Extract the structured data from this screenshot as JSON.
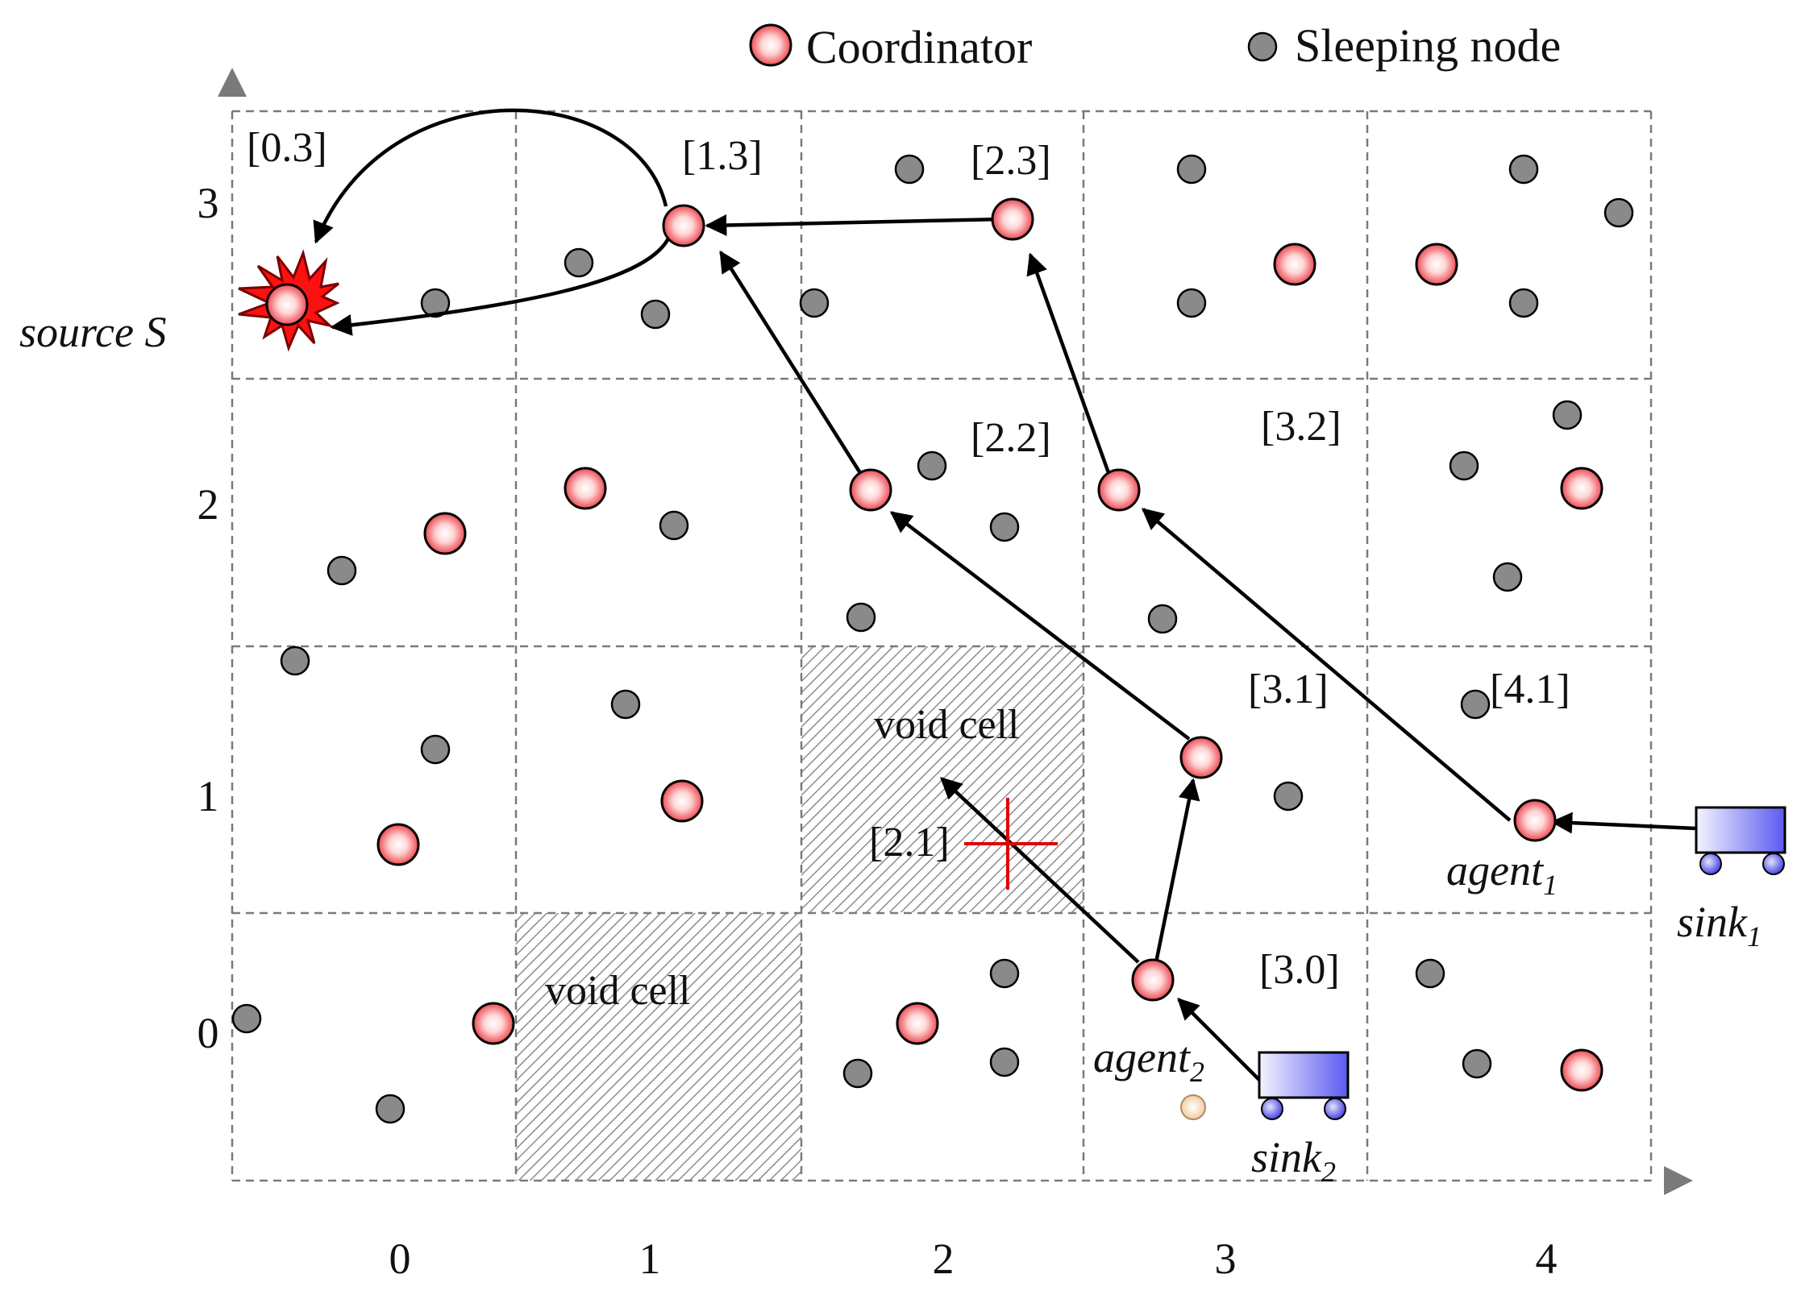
{
  "legend": {
    "coordinator": "Coordinator",
    "sleeping": "Sleeping node"
  },
  "axes": {
    "x_ticks": [
      "0",
      "1",
      "2",
      "3",
      "4"
    ],
    "y_ticks": [
      "0",
      "1",
      "2",
      "3"
    ]
  },
  "cell_labels": {
    "c03": "[0.3]",
    "c13": "[1.3]",
    "c23": "[2.3]",
    "c22": "[2.2]",
    "c32": "[3.2]",
    "c31": "[3.1]",
    "c41": "[4.1]",
    "c21": "[2.1]",
    "c30": "[3.0]"
  },
  "void": {
    "top": "void cell",
    "bottom": "void cell"
  },
  "actors": {
    "source": "source S",
    "agent1_base": "agent",
    "agent1_sub": "1",
    "agent2_base": "agent",
    "agent2_sub": "2",
    "sink1_base": "sink",
    "sink1_sub": "1",
    "sink2_base": "sink",
    "sink2_sub": "2"
  },
  "colors": {
    "coordinator": "#e8303a",
    "sleeping": "#8a8a8a",
    "sink": "#5a5af0",
    "source": "#ff1010",
    "blocked_marker": "#e00000"
  }
}
